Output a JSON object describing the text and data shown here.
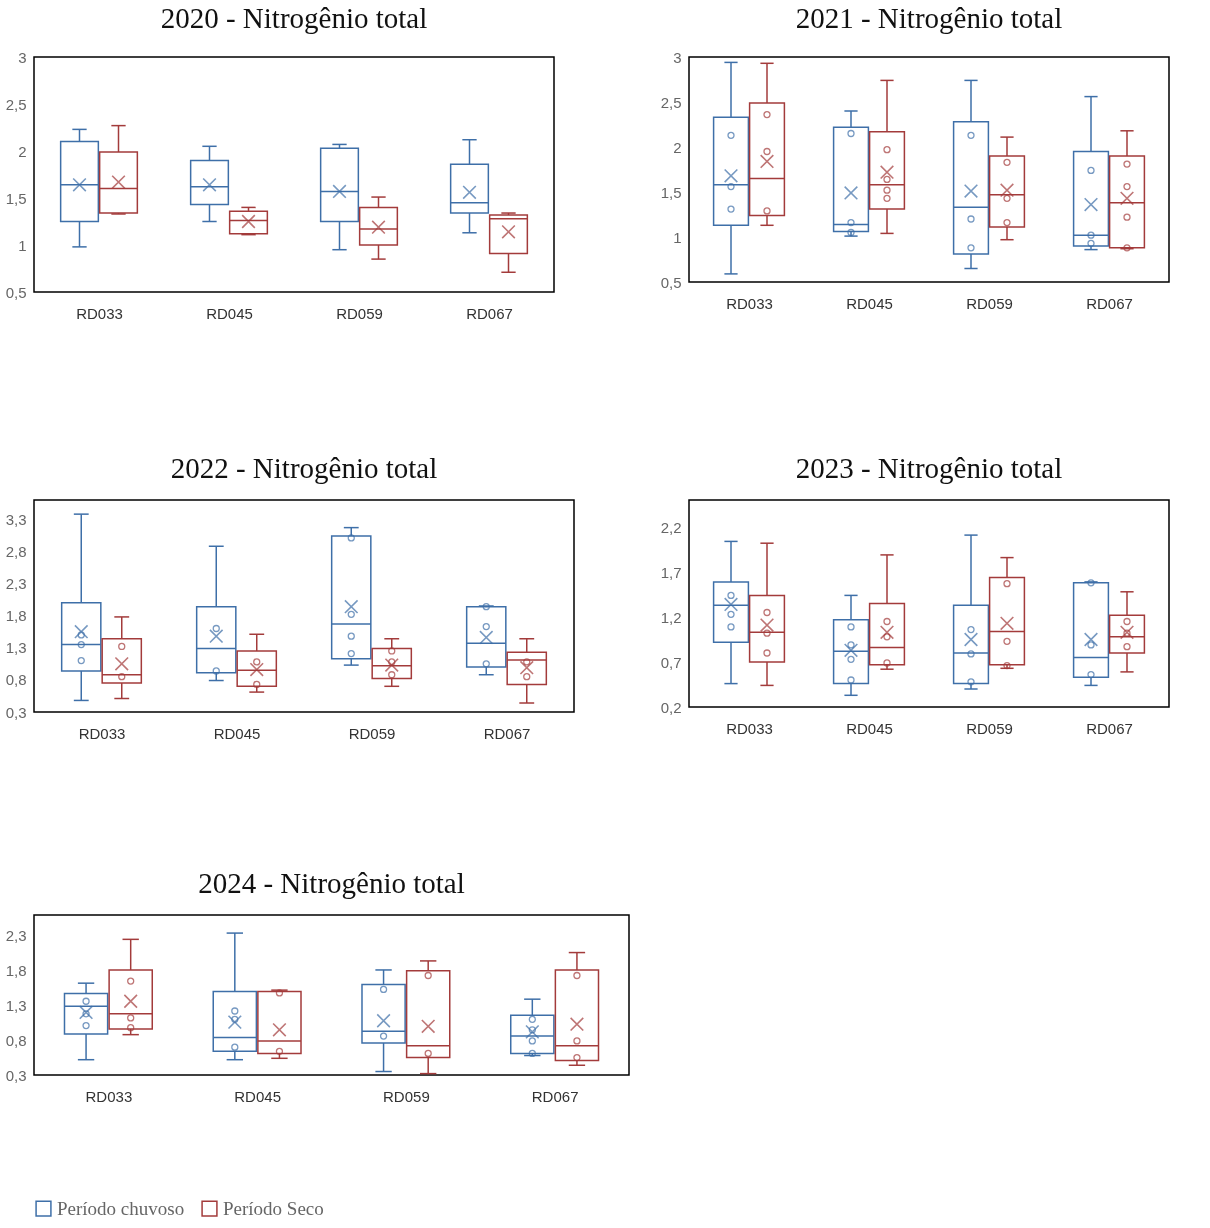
{
  "chart_data": [
    {
      "type": "box",
      "title": "2020 - Nitrogênio total",
      "categories": [
        "RD033",
        "RD045",
        "RD059",
        "RD067"
      ],
      "ylim": [
        0.5,
        3
      ],
      "yticks": [
        {
          "value": 0.5,
          "label": "0,5"
        },
        1,
        {
          "value": 1.5,
          "label": "1,5"
        },
        2,
        {
          "value": 2.5,
          "label": "2,5"
        },
        3
      ],
      "series": [
        {
          "color": "#3e6fa8",
          "boxes": [
            {
              "low": 0.98,
              "q1": 1.25,
              "median": 1.64,
              "q3": 2.1,
              "high": 2.23,
              "mean": 1.64
            },
            {
              "low": 1.25,
              "q1": 1.43,
              "median": 1.62,
              "q3": 1.9,
              "high": 2.05,
              "mean": 1.64
            },
            {
              "low": 0.95,
              "q1": 1.25,
              "median": 1.57,
              "q3": 2.03,
              "high": 2.07,
              "mean": 1.57
            },
            {
              "low": 1.13,
              "q1": 1.34,
              "median": 1.45,
              "q3": 1.86,
              "high": 2.12,
              "mean": 1.56
            }
          ]
        },
        {
          "color": "#a33b3b",
          "boxes": [
            {
              "low": 1.33,
              "q1": 1.34,
              "median": 1.6,
              "q3": 1.99,
              "high": 2.27,
              "mean": 1.67
            },
            {
              "low": 1.11,
              "q1": 1.12,
              "median": 1.26,
              "q3": 1.36,
              "high": 1.4,
              "mean": 1.25
            },
            {
              "low": 0.85,
              "q1": 1.0,
              "median": 1.17,
              "q3": 1.4,
              "high": 1.51,
              "mean": 1.19
            },
            {
              "low": 0.71,
              "q1": 0.91,
              "median": 1.28,
              "q3": 1.32,
              "high": 1.34,
              "mean": 1.14
            }
          ]
        }
      ]
    },
    {
      "type": "box",
      "title": "2021 - Nitrogênio total",
      "categories": [
        "RD033",
        "RD045",
        "RD059",
        "RD067"
      ],
      "ylim": [
        0.5,
        3
      ],
      "yticks": [
        {
          "value": 0.5,
          "label": "0,5"
        },
        1,
        {
          "value": 1.5,
          "label": "1,5"
        },
        2,
        {
          "value": 2.5,
          "label": "2,5"
        },
        3
      ],
      "series": [
        {
          "color": "#3e6fa8",
          "boxes": [
            {
              "low": 0.59,
              "q1": 1.13,
              "median": 1.58,
              "q3": 2.33,
              "high": 2.94,
              "mean": 1.68,
              "outliers": [
                2.13,
                1.56,
                1.31
              ]
            },
            {
              "low": 1.01,
              "q1": 1.06,
              "median": 1.14,
              "q3": 2.22,
              "high": 2.4,
              "mean": 1.49,
              "outliers": [
                2.15,
                1.16,
                1.05
              ]
            },
            {
              "low": 0.65,
              "q1": 0.81,
              "median": 1.33,
              "q3": 2.28,
              "high": 2.74,
              "mean": 1.51,
              "outliers": [
                2.13,
                1.2,
                0.88
              ]
            },
            {
              "low": 0.86,
              "q1": 0.9,
              "median": 1.02,
              "q3": 1.95,
              "high": 2.56,
              "mean": 1.36,
              "outliers": [
                1.74,
                1.02,
                0.93
              ]
            }
          ]
        },
        {
          "color": "#a33b3b",
          "boxes": [
            {
              "low": 1.13,
              "q1": 1.24,
              "median": 1.65,
              "q3": 2.49,
              "high": 2.93,
              "mean": 1.84,
              "outliers": [
                2.36,
                1.95,
                1.29
              ]
            },
            {
              "low": 1.04,
              "q1": 1.31,
              "median": 1.58,
              "q3": 2.17,
              "high": 2.74,
              "mean": 1.72,
              "outliers": [
                1.97,
                1.64,
                1.52,
                1.43
              ]
            },
            {
              "low": 0.97,
              "q1": 1.11,
              "median": 1.47,
              "q3": 1.9,
              "high": 2.11,
              "mean": 1.52,
              "outliers": [
                1.83,
                1.43,
                1.16
              ]
            },
            {
              "low": 0.87,
              "q1": 0.88,
              "median": 1.38,
              "q3": 1.9,
              "high": 2.18,
              "mean": 1.43,
              "outliers": [
                1.81,
                1.56,
                1.22,
                0.88
              ]
            }
          ]
        }
      ]
    },
    {
      "type": "box",
      "title": "2022 - Nitrogênio total",
      "categories": [
        "RD033",
        "RD045",
        "RD059",
        "RD067"
      ],
      "ylim": [
        0.3,
        3.6
      ],
      "yticks": [
        {
          "value": 0.3,
          "label": "0,3"
        },
        {
          "value": 0.8,
          "label": "0,8"
        },
        {
          "value": 1.3,
          "label": "1,3"
        },
        {
          "value": 1.8,
          "label": "1,8"
        },
        {
          "value": 2.3,
          "label": "2,3"
        },
        {
          "value": 2.8,
          "label": "2,8"
        },
        {
          "value": 3.3,
          "label": "3,3"
        }
      ],
      "series": [
        {
          "color": "#3e6fa8",
          "boxes": [
            {
              "low": 0.48,
              "q1": 0.94,
              "median": 1.35,
              "q3": 2.0,
              "high": 3.38,
              "mean": 1.55,
              "outliers": [
                1.5,
                1.35,
                1.1
              ]
            },
            {
              "low": 0.79,
              "q1": 0.91,
              "median": 1.29,
              "q3": 1.94,
              "high": 2.88,
              "mean": 1.48,
              "outliers": [
                1.6,
                0.94
              ]
            },
            {
              "low": 1.03,
              "q1": 1.13,
              "median": 1.67,
              "q3": 3.04,
              "high": 3.17,
              "mean": 1.94,
              "outliers": [
                3.01,
                1.82,
                1.48,
                1.21
              ]
            },
            {
              "low": 0.88,
              "q1": 1.0,
              "median": 1.37,
              "q3": 1.94,
              "high": 1.95,
              "mean": 1.46,
              "outliers": [
                1.94,
                1.63,
                1.05
              ]
            }
          ]
        },
        {
          "color": "#a33b3b",
          "boxes": [
            {
              "low": 0.51,
              "q1": 0.75,
              "median": 0.88,
              "q3": 1.44,
              "high": 1.78,
              "mean": 1.05,
              "outliers": [
                1.32,
                0.85
              ]
            },
            {
              "low": 0.61,
              "q1": 0.7,
              "median": 0.95,
              "q3": 1.25,
              "high": 1.51,
              "mean": 0.96,
              "outliers": [
                1.08,
                0.73
              ]
            },
            {
              "low": 0.7,
              "q1": 0.82,
              "median": 1.02,
              "q3": 1.29,
              "high": 1.44,
              "mean": 1.03,
              "outliers": [
                1.25,
                1.08,
                0.88
              ]
            },
            {
              "low": 0.44,
              "q1": 0.73,
              "median": 1.11,
              "q3": 1.23,
              "high": 1.44,
              "mean": 0.99,
              "outliers": [
                1.08,
                0.85
              ]
            }
          ]
        }
      ]
    },
    {
      "type": "box",
      "title": "2023 - Nitrogênio total",
      "categories": [
        "RD033",
        "RD045",
        "RD059",
        "RD067"
      ],
      "ylim": [
        0.2,
        2.5
      ],
      "yticks": [
        {
          "value": 0.2,
          "label": "0,2"
        },
        {
          "value": 0.7,
          "label": "0,7"
        },
        {
          "value": 1.2,
          "label": "1,2"
        },
        {
          "value": 1.7,
          "label": "1,7"
        },
        {
          "value": 2.2,
          "label": "2,2"
        }
      ],
      "series": [
        {
          "color": "#3e6fa8",
          "boxes": [
            {
              "low": 0.46,
              "q1": 0.92,
              "median": 1.33,
              "q3": 1.59,
              "high": 2.04,
              "mean": 1.34,
              "outliers": [
                1.44,
                1.23,
                1.09
              ]
            },
            {
              "low": 0.33,
              "q1": 0.46,
              "median": 0.82,
              "q3": 1.17,
              "high": 1.44,
              "mean": 0.83,
              "outliers": [
                1.09,
                0.89,
                0.73,
                0.5
              ]
            },
            {
              "low": 0.4,
              "q1": 0.46,
              "median": 0.8,
              "q3": 1.33,
              "high": 2.11,
              "mean": 0.95,
              "outliers": [
                1.06,
                0.79,
                0.48
              ]
            },
            {
              "low": 0.44,
              "q1": 0.53,
              "median": 0.75,
              "q3": 1.58,
              "high": 1.59,
              "mean": 0.95,
              "outliers": [
                1.58,
                0.89,
                0.56
              ]
            }
          ]
        },
        {
          "color": "#a33b3b",
          "boxes": [
            {
              "low": 0.44,
              "q1": 0.7,
              "median": 1.03,
              "q3": 1.44,
              "high": 2.02,
              "mean": 1.11,
              "outliers": [
                1.25,
                1.02,
                0.8
              ]
            },
            {
              "low": 0.62,
              "q1": 0.67,
              "median": 0.86,
              "q3": 1.35,
              "high": 1.89,
              "mean": 1.03,
              "outliers": [
                1.15,
                0.98,
                0.69
              ]
            },
            {
              "low": 0.63,
              "q1": 0.67,
              "median": 1.04,
              "q3": 1.64,
              "high": 1.86,
              "mean": 1.13,
              "outliers": [
                1.57,
                0.93,
                0.66
              ]
            },
            {
              "low": 0.59,
              "q1": 0.8,
              "median": 0.98,
              "q3": 1.22,
              "high": 1.48,
              "mean": 1.03,
              "outliers": [
                1.15,
                1.02,
                0.87
              ]
            }
          ]
        }
      ]
    },
    {
      "type": "box",
      "title": "2024 - Nitrogênio total",
      "categories": [
        "RD033",
        "RD045",
        "RD059",
        "RD067"
      ],
      "ylim": [
        0.3,
        2.6
      ],
      "yticks": [
        {
          "value": 0.3,
          "label": "0,3"
        },
        {
          "value": 0.8,
          "label": "0,8"
        },
        {
          "value": 1.3,
          "label": "1,3"
        },
        {
          "value": 1.8,
          "label": "1,8"
        },
        {
          "value": 2.3,
          "label": "2,3"
        }
      ],
      "legend": "bottom",
      "series": [
        {
          "name": "Período chuvoso",
          "color": "#3e6fa8",
          "boxes": [
            {
              "low": 0.52,
              "q1": 0.89,
              "median": 1.29,
              "q3": 1.47,
              "high": 1.62,
              "mean": 1.2,
              "outliers": [
                1.36,
                1.18,
                1.01
              ]
            },
            {
              "low": 0.52,
              "q1": 0.64,
              "median": 0.84,
              "q3": 1.5,
              "high": 2.34,
              "mean": 1.06,
              "outliers": [
                1.22,
                1.1,
                0.7
              ]
            },
            {
              "low": 0.35,
              "q1": 0.76,
              "median": 0.93,
              "q3": 1.6,
              "high": 1.81,
              "mean": 1.08,
              "outliers": [
                1.53,
                0.86
              ]
            },
            {
              "low": 0.58,
              "q1": 0.61,
              "median": 0.86,
              "q3": 1.16,
              "high": 1.39,
              "mean": 0.92,
              "outliers": [
                1.1,
                0.95,
                0.79,
                0.61
              ]
            }
          ]
        },
        {
          "name": "Período Seco",
          "color": "#a33b3b",
          "boxes": [
            {
              "low": 0.88,
              "q1": 0.96,
              "median": 1.18,
              "q3": 1.81,
              "high": 2.25,
              "mean": 1.36,
              "outliers": [
                1.65,
                1.12,
                0.98
              ]
            },
            {
              "low": 0.54,
              "q1": 0.61,
              "median": 0.79,
              "q3": 1.5,
              "high": 1.52,
              "mean": 0.95,
              "outliers": [
                1.48,
                0.64
              ]
            },
            {
              "low": 0.32,
              "q1": 0.55,
              "median": 0.72,
              "q3": 1.8,
              "high": 1.94,
              "mean": 1.0,
              "outliers": [
                1.73,
                0.61
              ]
            },
            {
              "low": 0.44,
              "q1": 0.51,
              "median": 0.72,
              "q3": 1.81,
              "high": 2.06,
              "mean": 1.03,
              "outliers": [
                1.73,
                0.79,
                0.55
              ]
            }
          ]
        }
      ]
    }
  ]
}
